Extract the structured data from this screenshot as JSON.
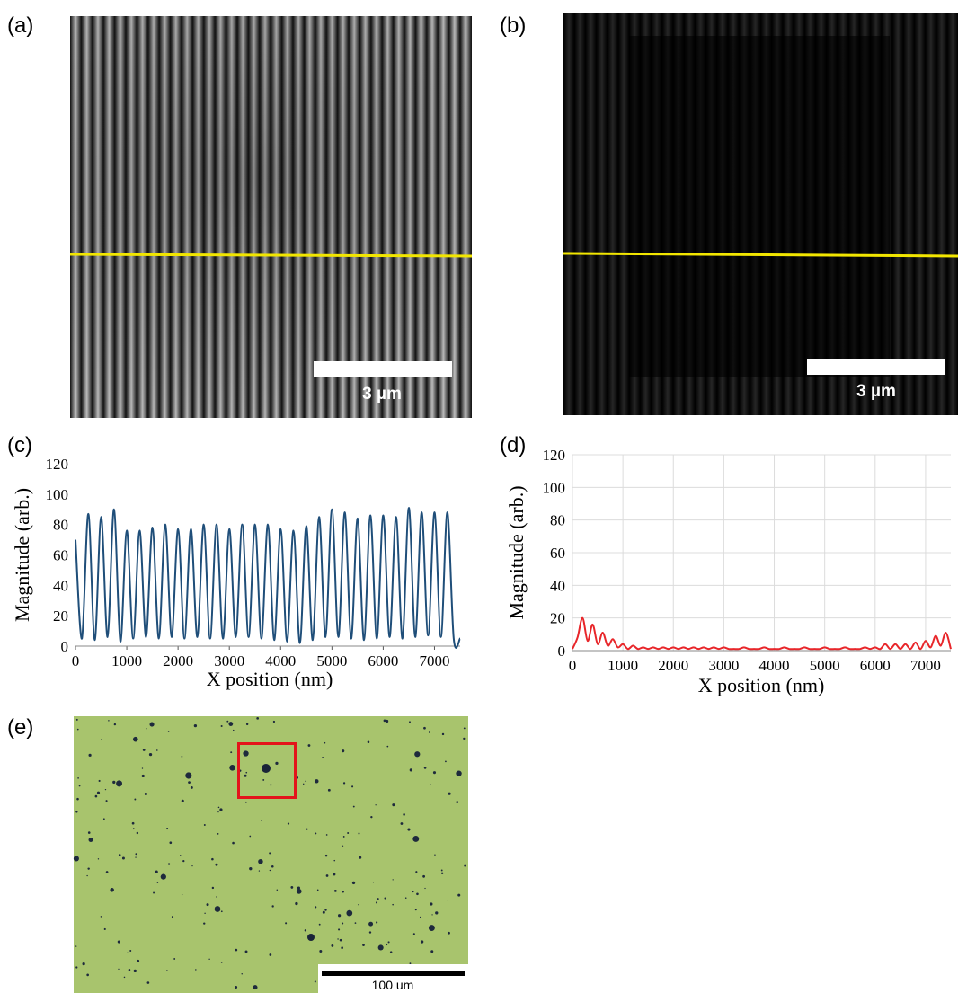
{
  "figure": {
    "panels": [
      {
        "label": "(a)",
        "scale_bar": "3 µm"
      },
      {
        "label": "(b)",
        "scale_bar": "3 µm"
      },
      {
        "label": "(c)"
      },
      {
        "label": "(d)"
      },
      {
        "label": "(e)",
        "scale_bar": "100 um"
      }
    ]
  },
  "chart_data": [
    {
      "type": "line",
      "x_label": "X position (nm)",
      "y_label": "Magnitude (arb.)",
      "color": "#1f4e79",
      "grid": false,
      "xlim": [
        0,
        7500
      ],
      "xticks": [
        0,
        1000,
        2000,
        3000,
        4000,
        5000,
        6000,
        7000
      ],
      "ylim": [
        0,
        120
      ],
      "yticks": [
        0,
        20,
        40,
        60,
        80,
        100,
        120
      ],
      "x": [
        0,
        125,
        250,
        375,
        500,
        625,
        750,
        875,
        1000,
        1125,
        1250,
        1375,
        1500,
        1625,
        1750,
        1875,
        2000,
        2125,
        2250,
        2375,
        2500,
        2625,
        2750,
        2875,
        3000,
        3125,
        3250,
        3375,
        3500,
        3625,
        3750,
        3875,
        4000,
        4125,
        4250,
        4375,
        4500,
        4625,
        4750,
        4875,
        5000,
        5125,
        5250,
        5375,
        5500,
        5625,
        5750,
        5875,
        6000,
        6125,
        6250,
        6375,
        6500,
        6625,
        6750,
        6875,
        7000,
        7125,
        7250,
        7375,
        7500
      ],
      "values": [
        70,
        5,
        87,
        4,
        85,
        6,
        90,
        3,
        76,
        5,
        76,
        6,
        78,
        5,
        80,
        6,
        77,
        5,
        77,
        6,
        80,
        5,
        80,
        5,
        77,
        6,
        80,
        6,
        80,
        5,
        80,
        4,
        77,
        3,
        76,
        2,
        79,
        4,
        85,
        6,
        90,
        6,
        88,
        5,
        84,
        4,
        86,
        5,
        86,
        6,
        85,
        5,
        91,
        6,
        88,
        7,
        88,
        6,
        88,
        5,
        5
      ]
    },
    {
      "type": "line",
      "x_label": "X position (nm)",
      "y_label": "Magnitude (arb.)",
      "color": "#e8262a",
      "grid": true,
      "xlim": [
        0,
        7500
      ],
      "xticks": [
        0,
        1000,
        2000,
        3000,
        4000,
        5000,
        6000,
        7000
      ],
      "ylim": [
        0,
        120
      ],
      "yticks": [
        0,
        20,
        40,
        60,
        80,
        100,
        120
      ],
      "x": [
        0,
        100,
        200,
        300,
        400,
        500,
        600,
        700,
        800,
        900,
        1000,
        1100,
        1200,
        1300,
        1400,
        1500,
        1600,
        1700,
        1800,
        1900,
        2000,
        2100,
        2200,
        2300,
        2400,
        2500,
        2600,
        2700,
        2800,
        2900,
        3000,
        3100,
        3200,
        3300,
        3400,
        3500,
        3600,
        3700,
        3800,
        3900,
        4000,
        4100,
        4200,
        4300,
        4400,
        4500,
        4600,
        4700,
        4800,
        4900,
        5000,
        5100,
        5200,
        5300,
        5400,
        5500,
        5600,
        5700,
        5800,
        5900,
        6000,
        6100,
        6200,
        6300,
        6400,
        6500,
        6600,
        6700,
        6800,
        6900,
        7000,
        7100,
        7200,
        7300,
        7400,
        7500
      ],
      "values": [
        1,
        8,
        20,
        6,
        16,
        4,
        11,
        3,
        7,
        2,
        4,
        1,
        3,
        1,
        2,
        1,
        2,
        1,
        2,
        1,
        2,
        1,
        2,
        1,
        2,
        1,
        2,
        1,
        2,
        1,
        2,
        1,
        1,
        1,
        2,
        1,
        1,
        1,
        2,
        1,
        1,
        1,
        2,
        1,
        1,
        1,
        2,
        1,
        1,
        1,
        2,
        1,
        1,
        1,
        2,
        1,
        1,
        1,
        2,
        1,
        2,
        1,
        4,
        1,
        4,
        1,
        4,
        1,
        5,
        1,
        6,
        2,
        9,
        3,
        11,
        1
      ]
    }
  ]
}
